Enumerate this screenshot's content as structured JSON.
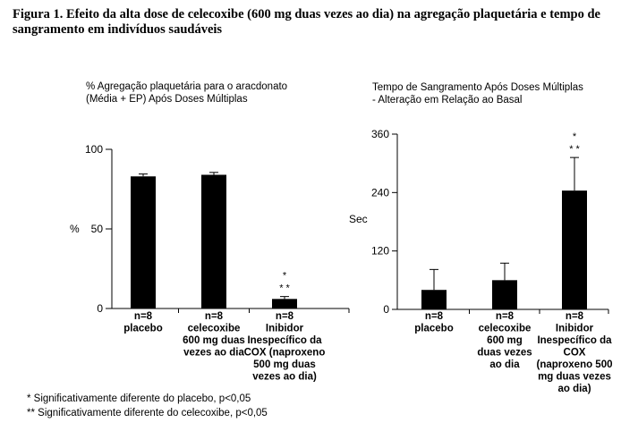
{
  "figure_title": "Figura 1. Efeito da alta dose de celecoxibe (600 mg duas vezes ao dia) na agregação plaquetária e tempo de sangramento em indivíduos saudáveis",
  "footnotes": [
    "* Significativamente diferente do placebo, p<0,05",
    "** Significativamente diferente do celecoxibe, p<0,05"
  ],
  "chart_data": [
    {
      "type": "bar",
      "title_lines": [
        "% Agregação plaquetária para o aracdonato",
        "(Média + EP) Após Doses Múltiplas"
      ],
      "ylabel": "%",
      "ylim": [
        0,
        100
      ],
      "yticks": [
        0,
        50,
        100
      ],
      "categories": [
        [
          "n=8",
          "placebo"
        ],
        [
          "n=8",
          "celecoxibe",
          "600 mg duas",
          "vezes ao dia"
        ],
        [
          "n=8",
          "Inibidor",
          "Inespecífico da",
          "COX (naproxeno",
          "500 mg duas",
          "vezes ao dia)"
        ]
      ],
      "values": [
        83,
        84,
        6
      ],
      "errors": [
        1.5,
        1.5,
        1.5
      ],
      "annotations": [
        [],
        [],
        [
          "*",
          "* *"
        ]
      ],
      "bar_color": "#000000"
    },
    {
      "type": "bar",
      "title_lines": [
        "Tempo de Sangramento Após Doses Múltiplas",
        "- Alteração em Relação ao Basal"
      ],
      "ylabel": "Sec",
      "ylim": [
        0,
        360
      ],
      "yticks": [
        0,
        120,
        240,
        360
      ],
      "categories": [
        [
          "n=8",
          "placebo"
        ],
        [
          "n=8",
          "celecoxibe",
          "600 mg",
          "duas vezes",
          "ao dia"
        ],
        [
          "n=8",
          "Inibidor",
          "Inespecífico da",
          "COX",
          "(naproxeno 500",
          "mg duas vezes",
          "ao dia)"
        ]
      ],
      "values": [
        40,
        60,
        244
      ],
      "errors": [
        42,
        35,
        68
      ],
      "annotations": [
        [],
        [],
        [
          "*",
          "* *"
        ]
      ],
      "bar_color": "#000000"
    }
  ]
}
